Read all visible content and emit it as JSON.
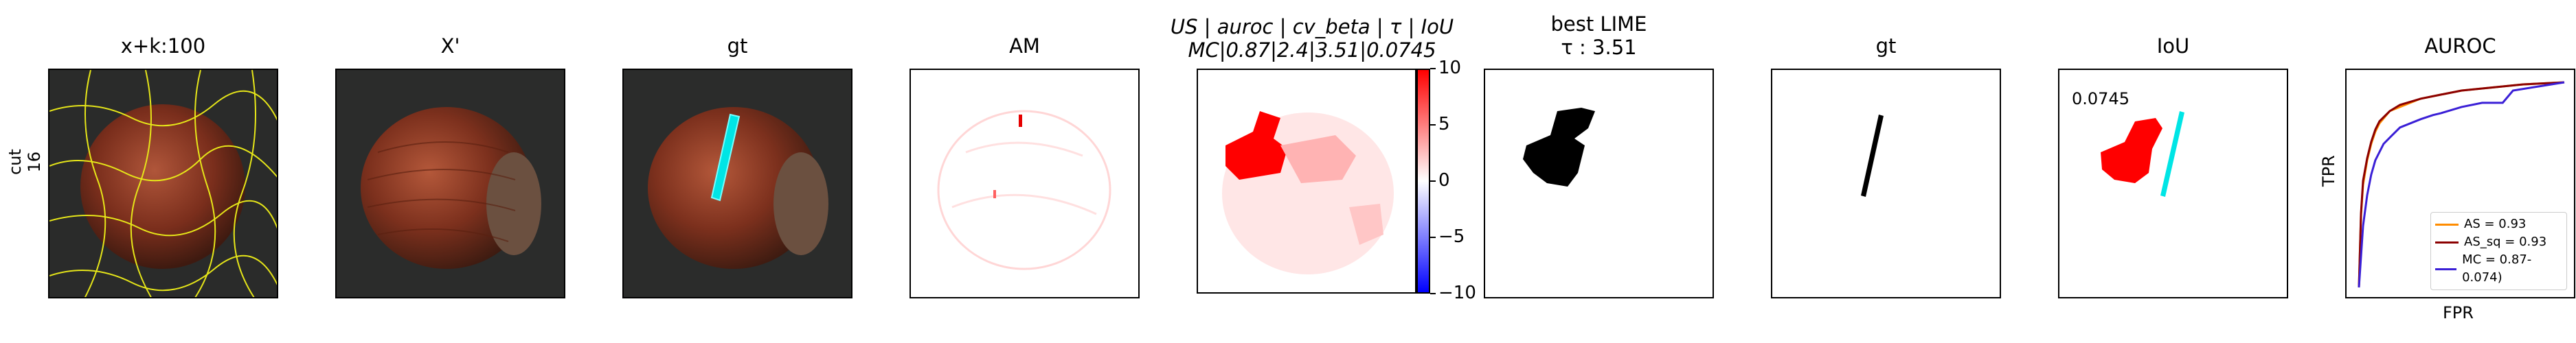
{
  "row_label": {
    "line1": "cut",
    "line2": "16"
  },
  "panels": {
    "p1": {
      "title": "x+k:100"
    },
    "p2": {
      "title": "X'"
    },
    "p3": {
      "title": "gt"
    },
    "p4": {
      "title": "AM"
    },
    "p5": {
      "title_line1": "US | auroc | cv_beta | τ | IoU",
      "title_line2": "MC|0.87|2.4|3.51|0.0745"
    },
    "p6": {
      "title_line1": "best LIME",
      "title_line2": "τ : 3.51"
    },
    "p7": {
      "title": "gt"
    },
    "p8": {
      "title": "IoU",
      "annotation": "0.0745"
    },
    "p9": {
      "title": "AUROC"
    }
  },
  "colorbar": {
    "ticks": [
      "10",
      "5",
      "0",
      "−5",
      "−10"
    ],
    "tick_values": [
      10,
      5,
      0,
      -5,
      -10
    ],
    "range": [
      -10,
      10
    ],
    "colors": {
      "pos": "#ff0000",
      "neg": "#0000ff",
      "mid": "#ffffff"
    }
  },
  "colors": {
    "segment_edges": "#e6e619",
    "gt_mask": "#00e5e5",
    "iou_pred": "#ff0000",
    "lime_mask": "#000000"
  },
  "chart_data": {
    "type": "line",
    "title": "AUROC",
    "xlabel": "FPR",
    "ylabel": "TPR",
    "xlim": [
      0,
      1
    ],
    "ylim": [
      0,
      1
    ],
    "legend_position": "lower-right",
    "series": [
      {
        "name": "AS = 0.93",
        "color": "#ff8c00",
        "x": [
          0,
          0.01,
          0.02,
          0.04,
          0.06,
          0.08,
          0.1,
          0.15,
          0.2,
          0.3,
          0.4,
          0.5,
          0.6,
          0.8,
          1.0
        ],
        "y": [
          0,
          0.35,
          0.5,
          0.62,
          0.7,
          0.76,
          0.8,
          0.86,
          0.88,
          0.92,
          0.94,
          0.96,
          0.97,
          0.99,
          1.0
        ]
      },
      {
        "name": "AS_sq = 0.93",
        "color": "#8b0000",
        "x": [
          0,
          0.01,
          0.02,
          0.04,
          0.06,
          0.08,
          0.1,
          0.15,
          0.2,
          0.3,
          0.4,
          0.5,
          0.6,
          0.8,
          1.0
        ],
        "y": [
          0,
          0.36,
          0.52,
          0.63,
          0.71,
          0.77,
          0.81,
          0.86,
          0.89,
          0.92,
          0.94,
          0.96,
          0.97,
          0.99,
          1.0
        ]
      },
      {
        "name": "MC = 0.87-0.074)",
        "color": "#3a1fd6",
        "x": [
          0,
          0.02,
          0.04,
          0.06,
          0.08,
          0.12,
          0.16,
          0.2,
          0.3,
          0.36,
          0.4,
          0.5,
          0.6,
          0.7,
          0.75,
          1.0
        ],
        "y": [
          0,
          0.3,
          0.45,
          0.55,
          0.62,
          0.7,
          0.74,
          0.78,
          0.82,
          0.84,
          0.85,
          0.88,
          0.9,
          0.9,
          0.96,
          1.0
        ]
      }
    ]
  }
}
